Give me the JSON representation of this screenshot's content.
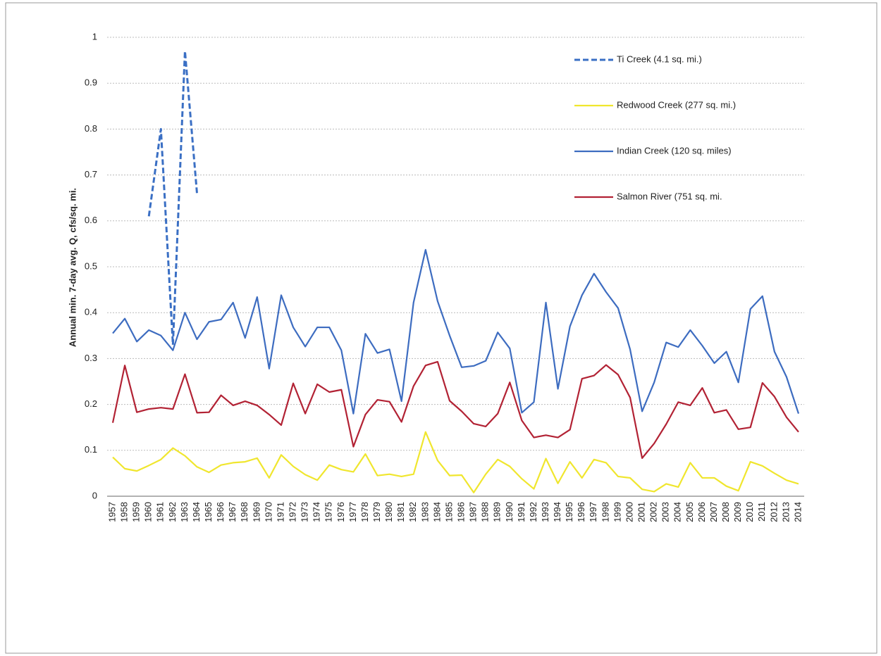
{
  "chart_data": {
    "type": "line",
    "y_label": "Annual min. 7-day avg. Q, cfs/sq. mi.",
    "categories": [
      "1957",
      "1958",
      "1959",
      "1960",
      "1961",
      "1962",
      "1963",
      "1964",
      "1965",
      "1966",
      "1967",
      "1968",
      "1969",
      "1970",
      "1971",
      "1972",
      "1973",
      "1974",
      "1975",
      "1976",
      "1977",
      "1978",
      "1979",
      "1980",
      "1981",
      "1982",
      "1983",
      "1984",
      "1985",
      "1986",
      "1987",
      "1988",
      "1989",
      "1990",
      "1991",
      "1992",
      "1993",
      "1994",
      "1995",
      "1996",
      "1997",
      "1998",
      "1999",
      "2000",
      "2001",
      "2002",
      "2003",
      "2004",
      "2005",
      "2006",
      "2007",
      "2008",
      "2009",
      "2010",
      "2011",
      "2012",
      "2013",
      "2014"
    ],
    "ylim": [
      0,
      1
    ],
    "yticks": [
      0,
      0.1,
      0.2,
      0.3,
      0.4,
      0.5,
      0.6,
      0.7,
      0.8,
      0.9,
      1
    ],
    "grid": true,
    "legend": "upper right",
    "series": [
      {
        "name": "Ti Creek (4.1 sq. mi.)",
        "color": "#3a6fc4",
        "dashed": true,
        "values": [
          null,
          null,
          null,
          0.61,
          0.8,
          0.33,
          0.97,
          0.66,
          null,
          null,
          null,
          null,
          null,
          null,
          null,
          null,
          null,
          null,
          null,
          null,
          null,
          null,
          null,
          null,
          null,
          null,
          null,
          null,
          null,
          null,
          null,
          null,
          null,
          null,
          null,
          null,
          null,
          null,
          null,
          null,
          null,
          null,
          null,
          null,
          null,
          null,
          null,
          null,
          null,
          null,
          null,
          null,
          null,
          null,
          null,
          null,
          null,
          null
        ]
      },
      {
        "name": "Redwood Creek (277 sq. mi.)",
        "color": "#f0e62e",
        "dashed": false,
        "values": [
          0.085,
          0.06,
          0.055,
          0.067,
          0.08,
          0.105,
          0.088,
          0.064,
          0.052,
          0.068,
          0.073,
          0.075,
          0.083,
          0.04,
          0.09,
          0.065,
          0.047,
          0.035,
          0.068,
          0.058,
          0.053,
          0.092,
          0.045,
          0.048,
          0.043,
          0.048,
          0.14,
          0.078,
          0.045,
          0.046,
          0.008,
          0.048,
          0.08,
          0.065,
          0.038,
          0.016,
          0.082,
          0.028,
          0.075,
          0.04,
          0.08,
          0.073,
          0.043,
          0.04,
          0.015,
          0.01,
          0.027,
          0.02,
          0.073,
          0.04,
          0.04,
          0.022,
          0.012,
          0.075,
          0.066,
          0.05,
          0.035,
          0.027
        ]
      },
      {
        "name": "Indian Creek (120 sq. miles)",
        "color": "#3d6cc0",
        "dashed": false,
        "values": [
          0.355,
          0.387,
          0.337,
          0.362,
          0.35,
          0.318,
          0.4,
          0.342,
          0.38,
          0.385,
          0.422,
          0.345,
          0.434,
          0.278,
          0.438,
          0.368,
          0.326,
          0.368,
          0.368,
          0.318,
          0.18,
          0.354,
          0.312,
          0.32,
          0.207,
          0.422,
          0.537,
          0.425,
          0.35,
          0.281,
          0.284,
          0.295,
          0.357,
          0.322,
          0.182,
          0.205,
          0.422,
          0.234,
          0.37,
          0.438,
          0.485,
          0.445,
          0.41,
          0.32,
          0.185,
          0.248,
          0.335,
          0.325,
          0.362,
          0.328,
          0.29,
          0.315,
          0.248,
          0.408,
          0.436,
          0.315,
          0.26,
          0.18
        ]
      },
      {
        "name": "Salmon River (751 sq. mi.",
        "color": "#b22234",
        "dashed": false,
        "values": [
          0.16,
          0.285,
          0.183,
          0.19,
          0.193,
          0.19,
          0.266,
          0.182,
          0.183,
          0.22,
          0.198,
          0.207,
          0.198,
          0.178,
          0.155,
          0.246,
          0.18,
          0.244,
          0.227,
          0.232,
          0.108,
          0.178,
          0.21,
          0.206,
          0.162,
          0.24,
          0.285,
          0.293,
          0.208,
          0.185,
          0.158,
          0.152,
          0.18,
          0.248,
          0.165,
          0.128,
          0.133,
          0.128,
          0.145,
          0.256,
          0.263,
          0.286,
          0.265,
          0.215,
          0.083,
          0.115,
          0.157,
          0.205,
          0.198,
          0.236,
          0.182,
          0.188,
          0.146,
          0.15,
          0.247,
          0.217,
          0.172,
          0.14
        ]
      }
    ]
  }
}
